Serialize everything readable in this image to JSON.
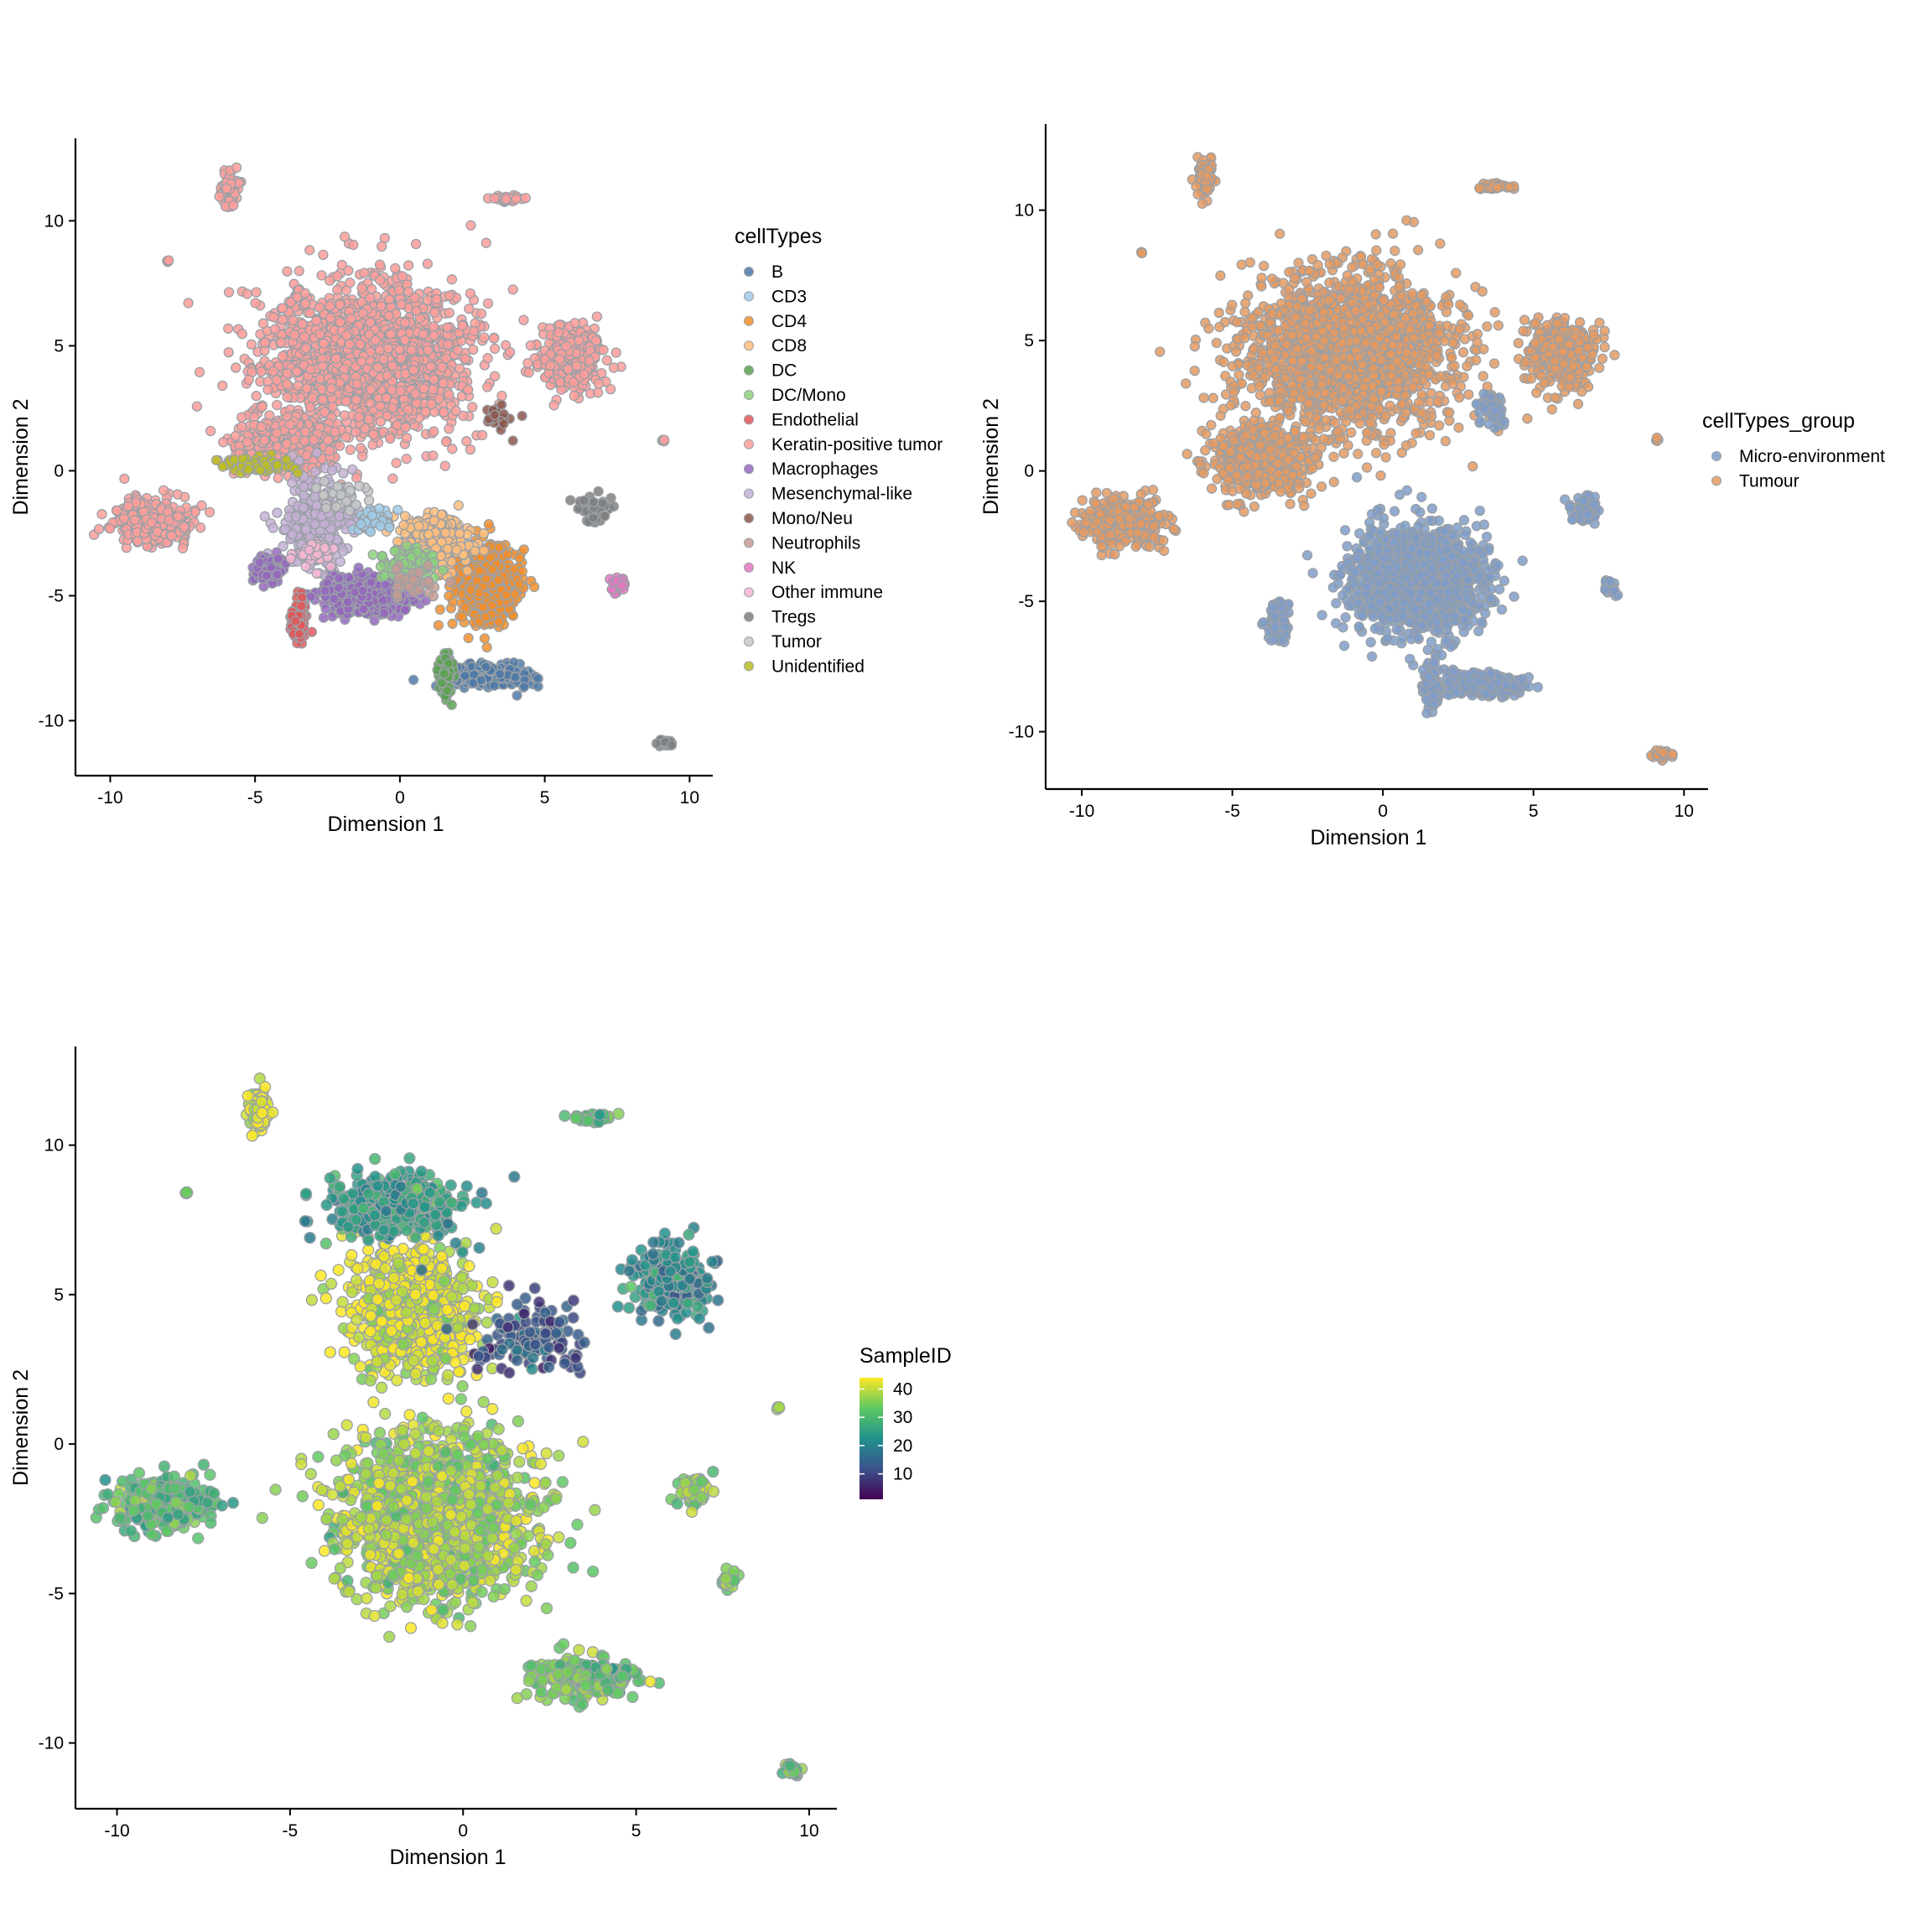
{
  "colors": {
    "cluster_outline": "#9aa0a6",
    "micro_environment": "#7f9cc8",
    "tumour": "#e49a62"
  },
  "chart_data": [
    {
      "type": "scatter",
      "panel": "cellTypes",
      "xlabel": "Dimension 1",
      "ylabel": "Dimension 2",
      "xlim": [
        -11.2,
        10.8
      ],
      "ylim": [
        -12.2,
        13.3
      ],
      "x_ticks": [
        -10,
        -5,
        0,
        5,
        10
      ],
      "y_ticks": [
        -10,
        -5,
        0,
        5,
        10
      ],
      "legend": {
        "title": "cellTypes",
        "position": "right",
        "entries": [
          {
            "label": "B",
            "color": "#4e79a7"
          },
          {
            "label": "CD3",
            "color": "#a0cbe8"
          },
          {
            "label": "CD4",
            "color": "#f28e2b"
          },
          {
            "label": "CD8",
            "color": "#ffbe7d"
          },
          {
            "label": "DC",
            "color": "#59a14f"
          },
          {
            "label": "DC/Mono",
            "color": "#8cd17d"
          },
          {
            "label": "Endothelial",
            "color": "#e15759"
          },
          {
            "label": "Keratin-positive tumor",
            "color": "#ff9d9a"
          },
          {
            "label": "Macrophages",
            "color": "#9467bd"
          },
          {
            "label": "Mesenchymal-like",
            "color": "#c5b0d5"
          },
          {
            "label": "Mono/Neu",
            "color": "#8c564b"
          },
          {
            "label": "Neutrophils",
            "color": "#c49c94"
          },
          {
            "label": "NK",
            "color": "#e377c2"
          },
          {
            "label": "Other immune",
            "color": "#f7b6d2"
          },
          {
            "label": "Tregs",
            "color": "#7f7f7f"
          },
          {
            "label": "Tumor",
            "color": "#c7c7c7"
          },
          {
            "label": "Unidentified",
            "color": "#bcbd22"
          }
        ]
      },
      "regions": [
        {
          "label": "Keratin-positive tumor",
          "x": -1.2,
          "y": 4.5,
          "sx": 3.2,
          "sy": 2.8,
          "n": 1800
        },
        {
          "label": "Keratin-positive tumor",
          "x": -4.0,
          "y": 1.0,
          "sx": 1.6,
          "sy": 1.0,
          "n": 450
        },
        {
          "label": "Keratin-positive tumor",
          "x": -8.6,
          "y": -2.0,
          "sx": 1.2,
          "sy": 0.8,
          "n": 320
        },
        {
          "label": "Keratin-positive tumor",
          "x": 5.9,
          "y": 4.5,
          "sx": 1.0,
          "sy": 1.1,
          "n": 380
        },
        {
          "label": "Keratin-positive tumor",
          "x": -5.9,
          "y": 11.2,
          "sx": 0.25,
          "sy": 0.6,
          "n": 90
        },
        {
          "label": "Keratin-positive tumor",
          "x": 3.7,
          "y": 10.9,
          "sx": 0.5,
          "sy": 0.12,
          "n": 40
        },
        {
          "label": "Keratin-positive tumor",
          "x": -8.0,
          "y": 8.4,
          "sx": 0.05,
          "sy": 0.05,
          "n": 4
        },
        {
          "label": "Keratin-positive tumor",
          "x": 9.1,
          "y": 1.2,
          "sx": 0.06,
          "sy": 0.06,
          "n": 4
        },
        {
          "label": "Mesenchymal-like",
          "x": -2.8,
          "y": -2.0,
          "sx": 1.0,
          "sy": 1.5,
          "n": 320
        },
        {
          "label": "Macrophages",
          "x": -1.2,
          "y": -5.0,
          "sx": 1.3,
          "sy": 0.7,
          "n": 420
        },
        {
          "label": "Macrophages",
          "x": -4.5,
          "y": -4.0,
          "sx": 0.5,
          "sy": 0.5,
          "n": 80
        },
        {
          "label": "Endothelial",
          "x": -3.5,
          "y": -6.0,
          "sx": 0.25,
          "sy": 0.8,
          "n": 90
        },
        {
          "label": "CD4",
          "x": 3.0,
          "y": -4.5,
          "sx": 1.1,
          "sy": 1.5,
          "n": 520
        },
        {
          "label": "CD8",
          "x": 1.3,
          "y": -2.8,
          "sx": 1.0,
          "sy": 0.9,
          "n": 300
        },
        {
          "label": "DC/Mono",
          "x": 0.3,
          "y": -3.8,
          "sx": 0.8,
          "sy": 0.6,
          "n": 130
        },
        {
          "label": "B",
          "x": 3.2,
          "y": -8.2,
          "sx": 1.3,
          "sy": 0.4,
          "n": 260
        },
        {
          "label": "DC",
          "x": 1.6,
          "y": -8.2,
          "sx": 0.25,
          "sy": 0.8,
          "n": 80
        },
        {
          "label": "Tregs",
          "x": 6.7,
          "y": -1.5,
          "sx": 0.45,
          "sy": 0.45,
          "n": 60
        },
        {
          "label": "Tregs",
          "x": 9.2,
          "y": -10.9,
          "sx": 0.3,
          "sy": 0.15,
          "n": 25
        },
        {
          "label": "NK",
          "x": 7.6,
          "y": -4.5,
          "sx": 0.25,
          "sy": 0.3,
          "n": 25
        },
        {
          "label": "Unidentified",
          "x": -5.0,
          "y": 0.2,
          "sx": 1.0,
          "sy": 0.3,
          "n": 70
        },
        {
          "label": "CD3",
          "x": -1.0,
          "y": -2.0,
          "sx": 0.6,
          "sy": 0.5,
          "n": 50
        },
        {
          "label": "Other immune",
          "x": -3.0,
          "y": -3.2,
          "sx": 0.6,
          "sy": 0.5,
          "n": 40
        },
        {
          "label": "Tumor",
          "x": -2.0,
          "y": -1.0,
          "sx": 0.8,
          "sy": 0.5,
          "n": 30
        },
        {
          "label": "Mono/Neu",
          "x": 3.5,
          "y": 2.0,
          "sx": 0.5,
          "sy": 0.5,
          "n": 20
        },
        {
          "label": "Neutrophils",
          "x": 0.5,
          "y": -4.5,
          "sx": 1.0,
          "sy": 0.6,
          "n": 30
        }
      ]
    },
    {
      "type": "scatter",
      "panel": "cellTypes_group",
      "xlabel": "Dimension 1",
      "ylabel": "Dimension 2",
      "xlim": [
        -11.2,
        10.8
      ],
      "ylim": [
        -12.2,
        13.3
      ],
      "x_ticks": [
        -10,
        -5,
        0,
        5,
        10
      ],
      "y_ticks": [
        -10,
        -5,
        0,
        5,
        10
      ],
      "legend": {
        "title": "cellTypes_group",
        "position": "right",
        "entries": [
          {
            "label": "Micro-environment",
            "color": "#7f9cc8"
          },
          {
            "label": "Tumour",
            "color": "#e49a62"
          }
        ]
      },
      "regions": [
        {
          "label": "Tumour",
          "x": -1.2,
          "y": 4.5,
          "sx": 3.2,
          "sy": 2.8,
          "n": 1800
        },
        {
          "label": "Tumour",
          "x": -4.0,
          "y": 0.5,
          "sx": 1.6,
          "sy": 1.2,
          "n": 500
        },
        {
          "label": "Tumour",
          "x": -8.6,
          "y": -2.0,
          "sx": 1.2,
          "sy": 0.8,
          "n": 320
        },
        {
          "label": "Tumour",
          "x": 5.9,
          "y": 4.5,
          "sx": 1.0,
          "sy": 1.1,
          "n": 380
        },
        {
          "label": "Tumour",
          "x": -5.9,
          "y": 11.2,
          "sx": 0.25,
          "sy": 0.6,
          "n": 90
        },
        {
          "label": "Tumour",
          "x": 3.7,
          "y": 10.9,
          "sx": 0.5,
          "sy": 0.12,
          "n": 40
        },
        {
          "label": "Tumour",
          "x": -8.0,
          "y": 8.4,
          "sx": 0.05,
          "sy": 0.05,
          "n": 4
        },
        {
          "label": "Tumour",
          "x": 9.1,
          "y": 1.2,
          "sx": 0.06,
          "sy": 0.06,
          "n": 4
        },
        {
          "label": "Tumour",
          "x": 9.2,
          "y": -10.9,
          "sx": 0.3,
          "sy": 0.15,
          "n": 25
        },
        {
          "label": "Micro-environment",
          "x": 1.2,
          "y": -4.2,
          "sx": 2.0,
          "sy": 1.8,
          "n": 1400
        },
        {
          "label": "Micro-environment",
          "x": 3.2,
          "y": -8.2,
          "sx": 1.3,
          "sy": 0.4,
          "n": 260
        },
        {
          "label": "Micro-environment",
          "x": 1.6,
          "y": -8.2,
          "sx": 0.25,
          "sy": 0.8,
          "n": 80
        },
        {
          "label": "Micro-environment",
          "x": -3.5,
          "y": -5.8,
          "sx": 0.3,
          "sy": 0.8,
          "n": 90
        },
        {
          "label": "Micro-environment",
          "x": 6.7,
          "y": -1.5,
          "sx": 0.45,
          "sy": 0.45,
          "n": 60
        },
        {
          "label": "Micro-environment",
          "x": 7.6,
          "y": -4.5,
          "sx": 0.25,
          "sy": 0.3,
          "n": 25
        },
        {
          "label": "Micro-environment",
          "x": 3.6,
          "y": 2.4,
          "sx": 0.4,
          "sy": 0.6,
          "n": 60
        }
      ]
    },
    {
      "type": "scatter",
      "panel": "SampleID",
      "xlabel": "Dimension 1",
      "ylabel": "Dimension 2",
      "xlim": [
        -11.2,
        10.8
      ],
      "ylim": [
        -12.2,
        13.3
      ],
      "x_ticks": [
        -10,
        -5,
        0,
        5,
        10
      ],
      "y_ticks": [
        -10,
        -5,
        0,
        5,
        10
      ],
      "legend": {
        "title": "SampleID",
        "position": "right",
        "type": "continuous",
        "range": [
          1,
          44
        ],
        "ticks": [
          10,
          20,
          30,
          40
        ],
        "colors": [
          "#440154",
          "#3b528b",
          "#21918c",
          "#5ec962",
          "#fde725"
        ]
      },
      "regions": [
        {
          "value": 38,
          "x": -0.8,
          "y": -2.5,
          "sx": 2.5,
          "sy": 2.5,
          "n": 1600
        },
        {
          "value": 42,
          "x": -1.5,
          "y": 4.5,
          "sx": 1.8,
          "sy": 2.0,
          "n": 700
        },
        {
          "value": 25,
          "x": -2.0,
          "y": 8.0,
          "sx": 1.8,
          "sy": 1.0,
          "n": 400
        },
        {
          "value": 22,
          "x": 6.0,
          "y": 5.5,
          "sx": 0.9,
          "sy": 1.0,
          "n": 300
        },
        {
          "value": 30,
          "x": -8.6,
          "y": -2.0,
          "sx": 1.2,
          "sy": 0.8,
          "n": 300
        },
        {
          "value": 42,
          "x": -5.9,
          "y": 11.2,
          "sx": 0.25,
          "sy": 0.6,
          "n": 90
        },
        {
          "value": 32,
          "x": 3.7,
          "y": 10.9,
          "sx": 0.5,
          "sy": 0.12,
          "n": 40
        },
        {
          "value": 34,
          "x": 3.5,
          "y": -7.8,
          "sx": 1.3,
          "sy": 0.6,
          "n": 260
        },
        {
          "value": 36,
          "x": 6.7,
          "y": -1.6,
          "sx": 0.45,
          "sy": 0.5,
          "n": 60
        },
        {
          "value": 35,
          "x": 7.7,
          "y": -4.5,
          "sx": 0.25,
          "sy": 0.3,
          "n": 25
        },
        {
          "value": 30,
          "x": 9.5,
          "y": -10.9,
          "sx": 0.3,
          "sy": 0.15,
          "n": 25
        },
        {
          "value": 42,
          "x": -8.0,
          "y": 8.4,
          "sx": 0.05,
          "sy": 0.05,
          "n": 4
        },
        {
          "value": 40,
          "x": 9.1,
          "y": 1.2,
          "sx": 0.06,
          "sy": 0.06,
          "n": 4
        },
        {
          "value": 12,
          "x": 2.0,
          "y": 3.5,
          "sx": 1.5,
          "sy": 1.0,
          "n": 120
        }
      ]
    }
  ]
}
